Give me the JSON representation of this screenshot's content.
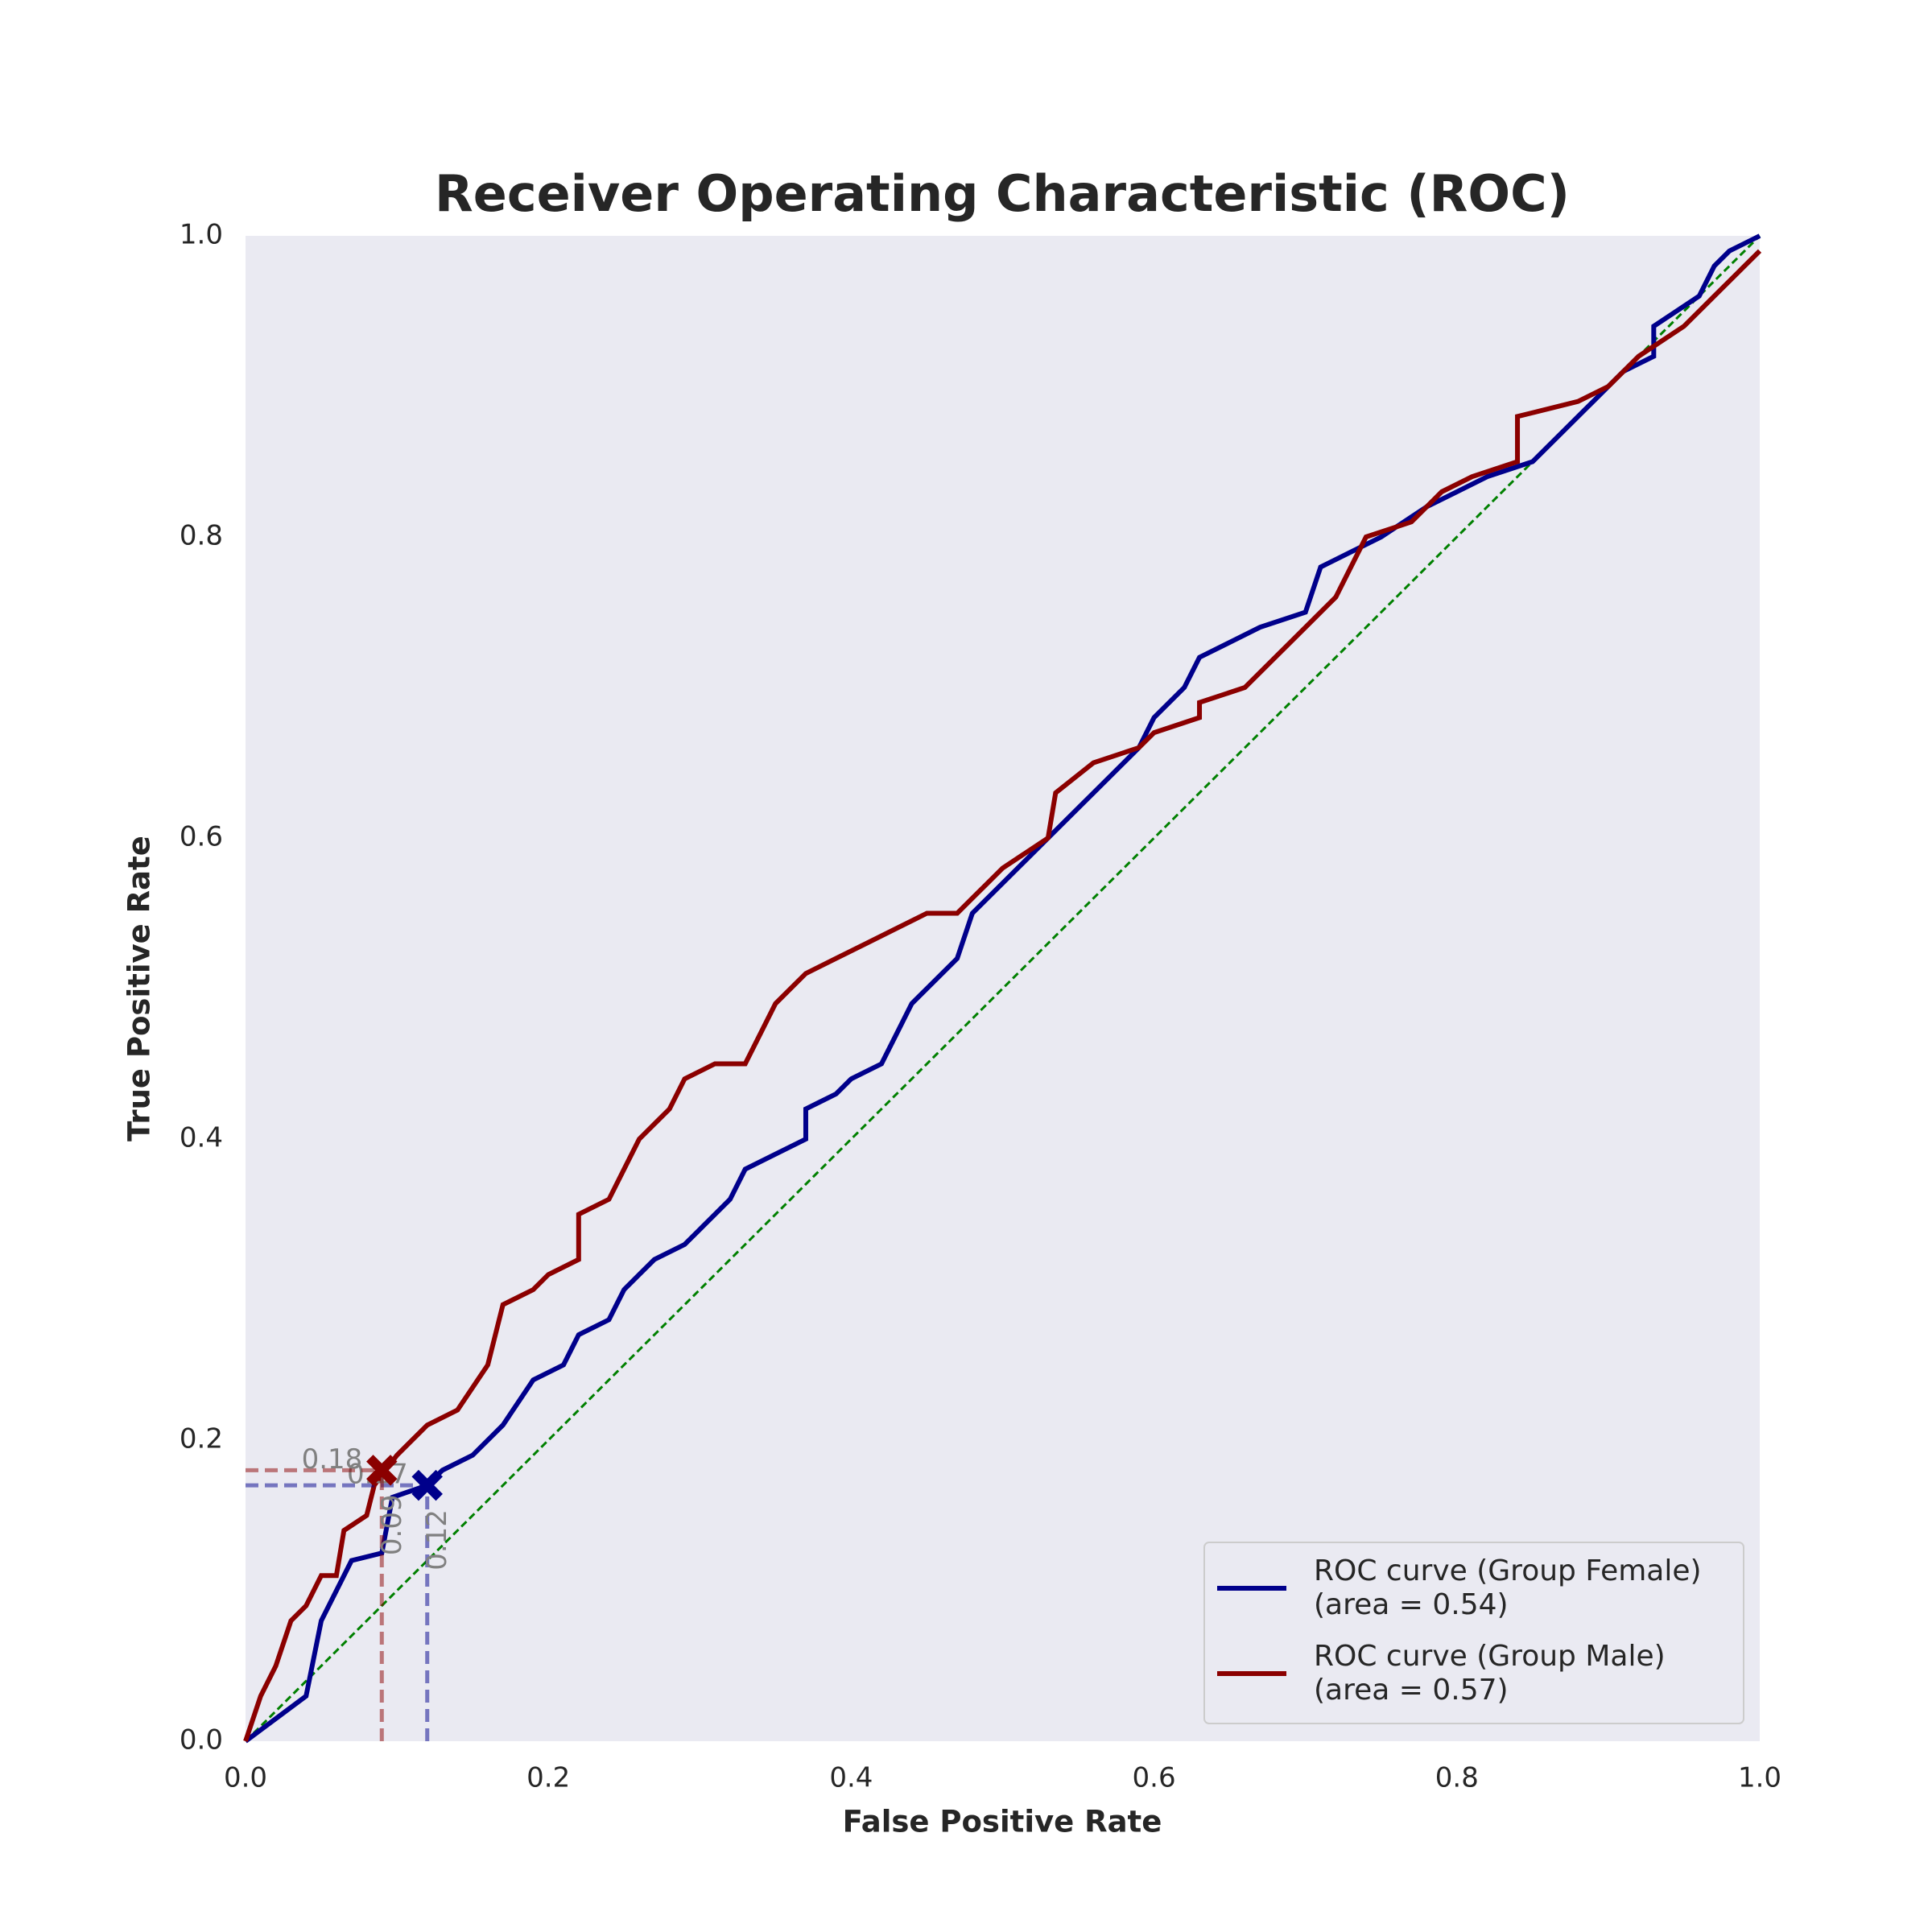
{
  "chart_data": {
    "type": "line",
    "title": "Receiver Operating Characteristic (ROC)",
    "x_label": "False Positive Rate",
    "y_label": "True Positive Rate",
    "xlim": [
      0,
      1
    ],
    "ylim": [
      0,
      1
    ],
    "xticks": [
      {
        "value": 0,
        "label": "0.0"
      },
      0.2,
      0.4,
      0.6,
      0.8,
      {
        "value": 1,
        "label": "1.0"
      }
    ],
    "yticks": [
      {
        "value": 0,
        "label": "0.0"
      },
      0.2,
      0.4,
      0.6,
      0.8,
      {
        "value": 1,
        "label": "1.0"
      }
    ],
    "grid": false,
    "legend": "lower right",
    "background": "#eaeaf2",
    "reference_line": {
      "x": [
        0,
        1
      ],
      "y": [
        0,
        1
      ],
      "color": "green"
    },
    "series": [
      {
        "name": "ROC curve (Group Female)",
        "area_label": "(area = 0.54)",
        "color": "#00008b",
        "x": [
          0,
          0.04,
          0.05,
          0.06,
          0.07,
          0.09,
          0.097,
          0.12,
          0.13,
          0.15,
          0.17,
          0.19,
          0.21,
          0.22,
          0.24,
          0.25,
          0.26,
          0.27,
          0.29,
          0.3,
          0.31,
          0.32,
          0.33,
          0.35,
          0.37,
          0.37,
          0.39,
          0.4,
          0.42,
          0.43,
          0.44,
          0.45,
          0.47,
          0.48,
          0.5,
          0.52,
          0.53,
          0.55,
          0.57,
          0.59,
          0.6,
          0.62,
          0.63,
          0.65,
          0.67,
          0.7,
          0.71,
          0.73,
          0.75,
          0.78,
          0.8,
          0.82,
          0.85,
          0.87,
          0.89,
          0.91,
          0.93,
          0.93,
          0.96,
          0.97,
          0.98,
          1
        ],
        "y": [
          0,
          0.03,
          0.08,
          0.1,
          0.12,
          0.125,
          0.162,
          0.17,
          0.18,
          0.19,
          0.21,
          0.24,
          0.25,
          0.27,
          0.28,
          0.3,
          0.31,
          0.32,
          0.33,
          0.34,
          0.35,
          0.36,
          0.38,
          0.39,
          0.4,
          0.42,
          0.43,
          0.44,
          0.45,
          0.47,
          0.49,
          0.5,
          0.52,
          0.55,
          0.57,
          0.59,
          0.6,
          0.62,
          0.64,
          0.66,
          0.68,
          0.7,
          0.72,
          0.73,
          0.74,
          0.75,
          0.78,
          0.79,
          0.8,
          0.82,
          0.83,
          0.84,
          0.85,
          0.87,
          0.89,
          0.91,
          0.92,
          0.94,
          0.96,
          0.98,
          0.99,
          1
        ]
      },
      {
        "name": "ROC curve (Group Male)",
        "area_label": "(area = 0.57)",
        "color": "#8b0000",
        "x": [
          0,
          0.01,
          0.02,
          0.03,
          0.04,
          0.05,
          0.06,
          0.065,
          0.08,
          0.085,
          0.1,
          0.12,
          0.14,
          0.16,
          0.17,
          0.19,
          0.2,
          0.22,
          0.22,
          0.24,
          0.25,
          0.26,
          0.27,
          0.28,
          0.29,
          0.31,
          0.33,
          0.34,
          0.35,
          0.36,
          0.37,
          0.39,
          0.41,
          0.43,
          0.45,
          0.47,
          0.48,
          0.49,
          0.5,
          0.53,
          0.535,
          0.56,
          0.59,
          0.6,
          0.63,
          0.63,
          0.66,
          0.68,
          0.7,
          0.72,
          0.73,
          0.74,
          0.77,
          0.79,
          0.81,
          0.84,
          0.84,
          0.88,
          0.9,
          0.92,
          0.95,
          0.97,
          0.99,
          1
        ],
        "y": [
          0,
          0.03,
          0.05,
          0.08,
          0.09,
          0.11,
          0.11,
          0.14,
          0.15,
          0.17,
          0.19,
          0.21,
          0.22,
          0.25,
          0.29,
          0.3,
          0.31,
          0.32,
          0.35,
          0.36,
          0.38,
          0.4,
          0.41,
          0.42,
          0.44,
          0.45,
          0.45,
          0.47,
          0.49,
          0.5,
          0.51,
          0.52,
          0.53,
          0.54,
          0.55,
          0.55,
          0.56,
          0.57,
          0.58,
          0.6,
          0.63,
          0.65,
          0.66,
          0.67,
          0.68,
          0.69,
          0.7,
          0.72,
          0.74,
          0.76,
          0.78,
          0.8,
          0.81,
          0.83,
          0.84,
          0.85,
          0.88,
          0.89,
          0.9,
          0.92,
          0.94,
          0.96,
          0.98,
          0.99
        ]
      }
    ],
    "markers": [
      {
        "x": 0.12,
        "y": 0.17,
        "color": "#00008b"
      },
      {
        "x": 0.09,
        "y": 0.18,
        "color": "#8b0000"
      }
    ]
  }
}
